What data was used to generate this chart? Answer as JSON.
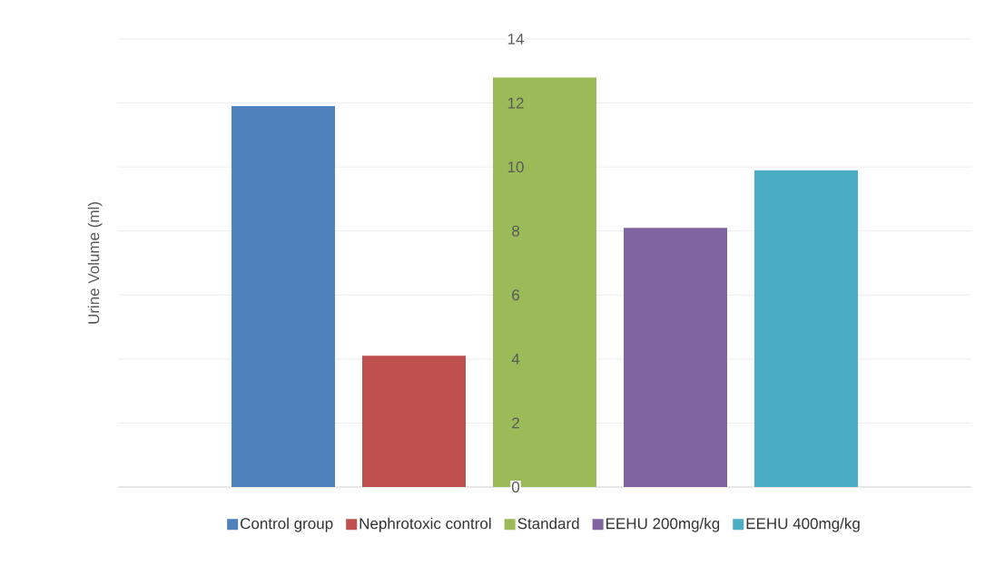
{
  "chart_data": {
    "type": "bar",
    "ylabel": "Urine Volume (ml)",
    "categories": [
      null
    ],
    "series": [
      {
        "name": "Control group",
        "color": "#4f81bd",
        "values": [
          11.9
        ]
      },
      {
        "name": "Nephrotoxic control",
        "color": "#c0504d",
        "values": [
          4.1
        ]
      },
      {
        "name": "Standard",
        "color": "#9bbb59",
        "values": [
          12.8
        ]
      },
      {
        "name": "EEHU 200mg/kg",
        "color": "#8064a2",
        "values": [
          8.1
        ]
      },
      {
        "name": "EEHU 400mg/kg",
        "color": "#4bacc6",
        "values": [
          9.9
        ]
      }
    ],
    "ylim": [
      0,
      14
    ],
    "yticks": [
      0,
      2,
      4,
      6,
      8,
      10,
      12,
      14
    ],
    "grid": "y",
    "legend": "bottom"
  }
}
